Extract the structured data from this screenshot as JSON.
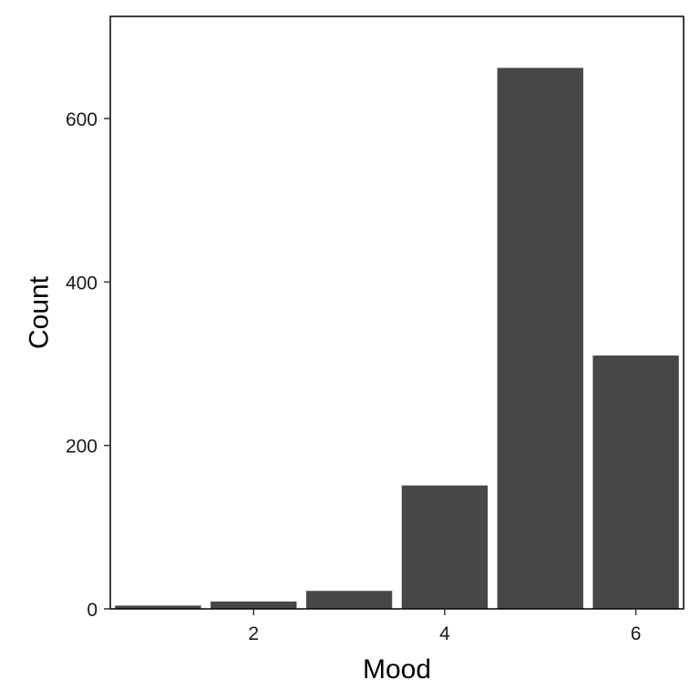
{
  "chart_data": {
    "type": "bar",
    "xlabel": "Mood",
    "ylabel": "Count",
    "x": [
      1,
      2,
      3,
      4,
      5,
      6
    ],
    "values": [
      4,
      9,
      22,
      151,
      662,
      310
    ],
    "xlim": [
      0.5,
      6.5
    ],
    "ylim": [
      0,
      725
    ],
    "xticks": [
      2,
      4,
      6
    ],
    "xtick_labels": [
      "2",
      "4",
      "6"
    ],
    "yticks": [
      0,
      200,
      400,
      600
    ],
    "ytick_labels": [
      "0",
      "200",
      "400",
      "600"
    ],
    "bar_width": 0.9,
    "bar_color": "#474747",
    "grid": false,
    "legend": "none"
  }
}
